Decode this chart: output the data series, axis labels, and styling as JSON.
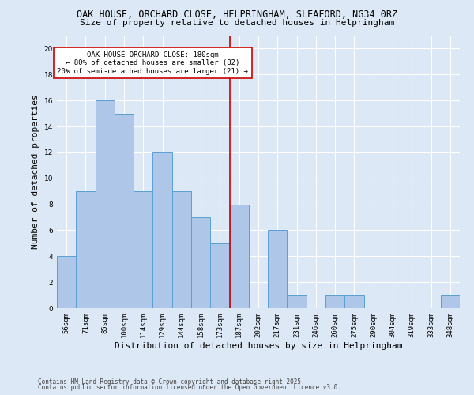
{
  "title1": "OAK HOUSE, ORCHARD CLOSE, HELPRINGHAM, SLEAFORD, NG34 0RZ",
  "title2": "Size of property relative to detached houses in Helpringham",
  "xlabel": "Distribution of detached houses by size in Helpringham",
  "ylabel": "Number of detached properties",
  "categories": [
    "56sqm",
    "71sqm",
    "85sqm",
    "100sqm",
    "114sqm",
    "129sqm",
    "144sqm",
    "158sqm",
    "173sqm",
    "187sqm",
    "202sqm",
    "217sqm",
    "231sqm",
    "246sqm",
    "260sqm",
    "275sqm",
    "290sqm",
    "304sqm",
    "319sqm",
    "333sqm",
    "348sqm"
  ],
  "values": [
    4,
    9,
    16,
    15,
    9,
    12,
    9,
    7,
    5,
    8,
    0,
    6,
    1,
    0,
    1,
    1,
    0,
    0,
    0,
    0,
    1
  ],
  "bar_color": "#aec6e8",
  "bar_edge_color": "#5a9fd4",
  "vline_index": 8,
  "ylim": [
    0,
    21
  ],
  "yticks": [
    0,
    2,
    4,
    6,
    8,
    10,
    12,
    14,
    16,
    18,
    20
  ],
  "annotation_text": "OAK HOUSE ORCHARD CLOSE: 180sqm\n← 80% of detached houses are smaller (82)\n20% of semi-detached houses are larger (21) →",
  "annotation_box_color": "#ffffff",
  "annotation_box_edge_color": "#cc0000",
  "vline_color": "#cc0000",
  "footnote1": "Contains HM Land Registry data © Crown copyright and database right 2025.",
  "footnote2": "Contains public sector information licensed under the Open Government Licence v3.0.",
  "background_color": "#dce8f5",
  "plot_bg_color": "#dce8f5",
  "title_fontsize": 8.5,
  "subtitle_fontsize": 8,
  "tick_fontsize": 6.5,
  "label_fontsize": 8,
  "footnote_fontsize": 5.5
}
